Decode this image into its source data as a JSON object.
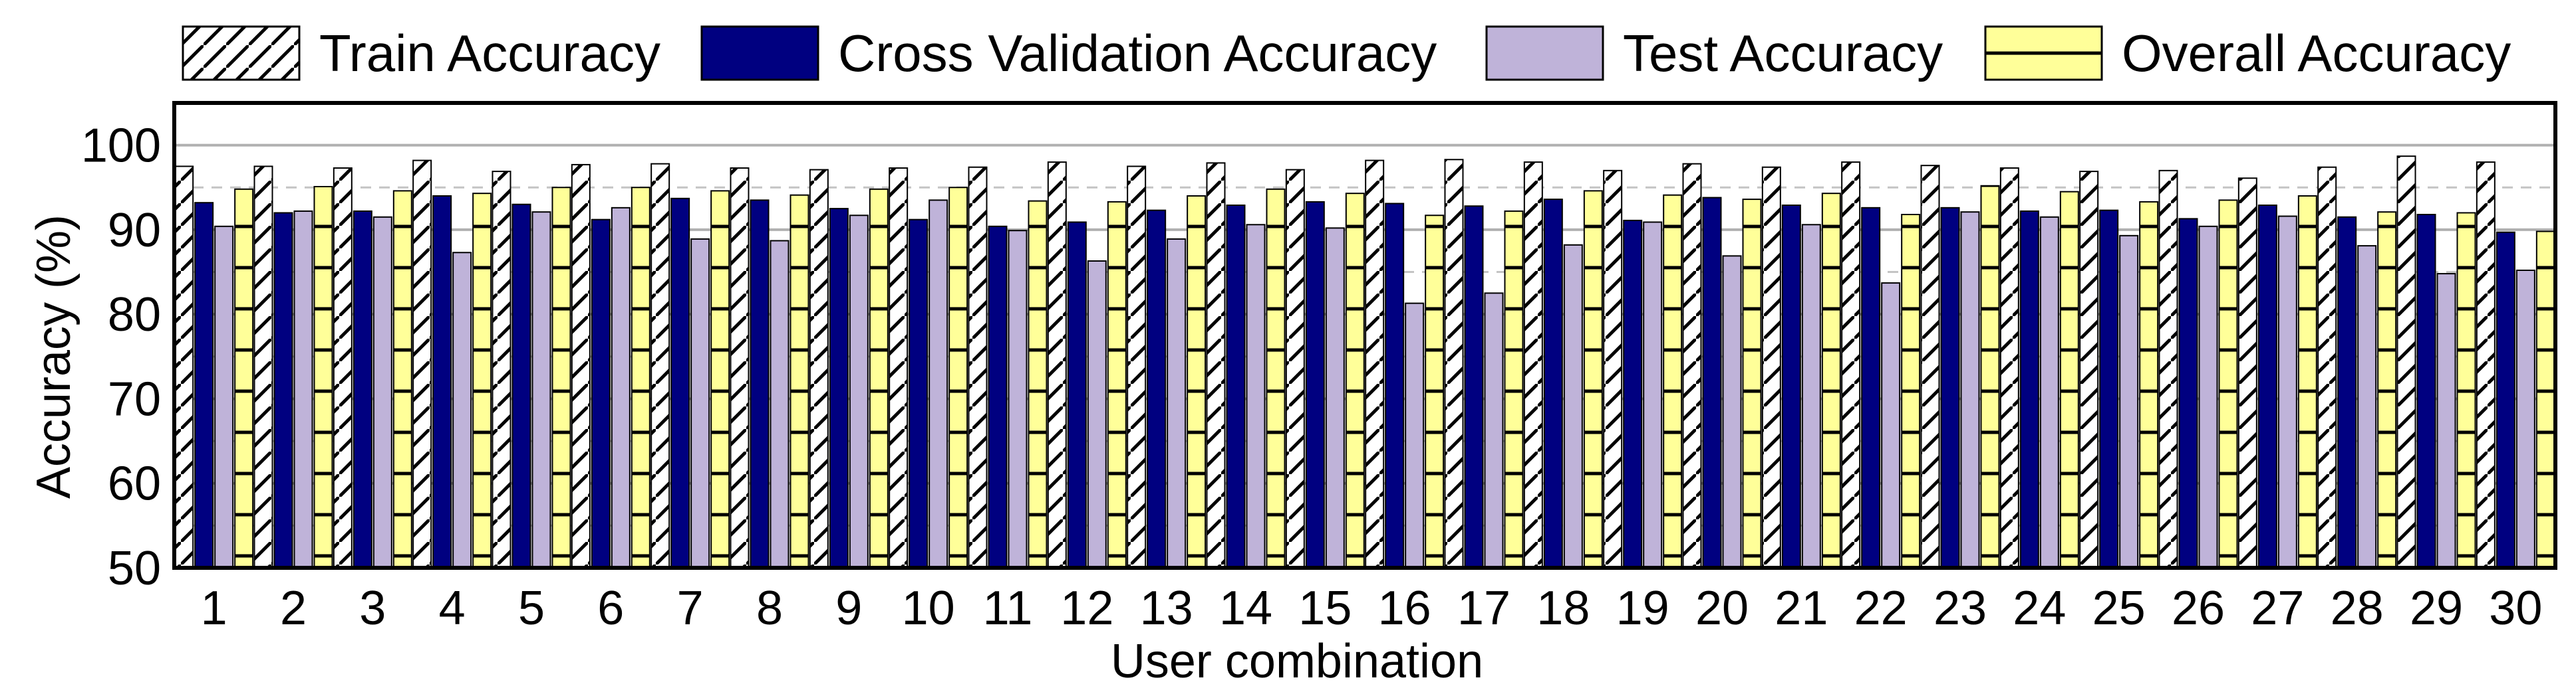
{
  "chart_data": {
    "type": "bar",
    "title": "",
    "xlabel": "User combination",
    "ylabel": "Accuracy (%)",
    "ylim": [
      50,
      105
    ],
    "yticks": [
      50,
      60,
      70,
      80,
      90,
      100
    ],
    "grid": true,
    "legend_position": "top",
    "categories": [
      "1",
      "2",
      "3",
      "4",
      "5",
      "6",
      "7",
      "8",
      "9",
      "10",
      "11",
      "12",
      "13",
      "14",
      "15",
      "16",
      "17",
      "18",
      "19",
      "20",
      "21",
      "22",
      "23",
      "24",
      "25",
      "26",
      "27",
      "28",
      "29",
      "30"
    ],
    "series": [
      {
        "name": "Train Accuracy",
        "pattern": "diagonal-hatch",
        "values": [
          97.5,
          97.5,
          97.3,
          98.2,
          96.9,
          97.7,
          97.8,
          97.3,
          97.1,
          97.3,
          97.4,
          98.0,
          97.5,
          97.9,
          97.1,
          98.2,
          98.3,
          98.0,
          97.0,
          97.8,
          97.4,
          98.0,
          97.6,
          97.3,
          96.9,
          97.0,
          96.1,
          97.4,
          98.7,
          98.0
        ]
      },
      {
        "name": "Cross Validation Accuracy",
        "color": "#000080",
        "values": [
          93.2,
          92.0,
          92.2,
          94.0,
          93.0,
          91.2,
          93.7,
          93.5,
          92.5,
          91.2,
          90.4,
          90.9,
          92.3,
          92.9,
          93.3,
          93.1,
          92.8,
          93.6,
          91.1,
          93.8,
          92.9,
          92.6,
          92.6,
          92.2,
          92.3,
          91.3,
          92.9,
          91.5,
          91.8,
          89.7
        ]
      },
      {
        "name": "Test Accuracy",
        "color": "#bfb3d9",
        "values": [
          90.4,
          92.2,
          91.5,
          87.3,
          92.1,
          92.6,
          88.9,
          88.7,
          91.7,
          93.5,
          89.9,
          86.3,
          88.9,
          90.6,
          90.2,
          81.3,
          82.5,
          88.2,
          90.9,
          86.9,
          90.6,
          83.7,
          92.1,
          91.5,
          89.3,
          90.4,
          91.6,
          88.1,
          84.8,
          85.2
        ]
      },
      {
        "name": "Overall Accuracy",
        "color": "#ffff99",
        "pattern": "horizontal-stripes",
        "values": [
          94.8,
          95.1,
          94.6,
          94.3,
          95.0,
          95.0,
          94.6,
          94.1,
          94.8,
          95.0,
          93.4,
          93.3,
          94.0,
          94.8,
          94.3,
          91.7,
          92.2,
          94.6,
          94.1,
          93.6,
          94.3,
          91.8,
          95.2,
          94.5,
          93.3,
          93.5,
          94.0,
          92.1,
          92.0,
          89.8
        ]
      }
    ]
  }
}
